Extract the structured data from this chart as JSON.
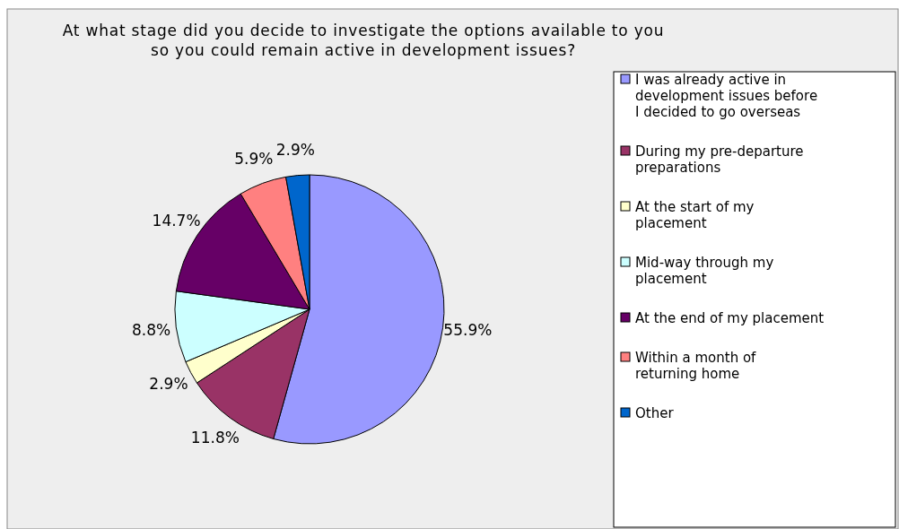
{
  "chart_data": {
    "type": "pie",
    "title": "At what stage did you decide to investigate the options available to you so you could remain active in development issues?",
    "categories": [
      "I was already active in development issues before I decided to go overseas",
      "During my pre-departure preparations",
      "At the start of my placement",
      "Mid-way through my placement",
      "At the end of my placement",
      "Within a month of returning home",
      "Other"
    ],
    "values": [
      55.9,
      11.8,
      2.9,
      8.8,
      14.7,
      5.9,
      2.9
    ],
    "value_labels": [
      "55.9%",
      "11.8%",
      "2.9%",
      "8.8%",
      "14.7%",
      "5.9%",
      "2.9%"
    ],
    "colors": [
      "#9999ff",
      "#993366",
      "#ffffcc",
      "#ccffff",
      "#660066",
      "#ff8080",
      "#0066cc"
    ],
    "legend": "right"
  }
}
